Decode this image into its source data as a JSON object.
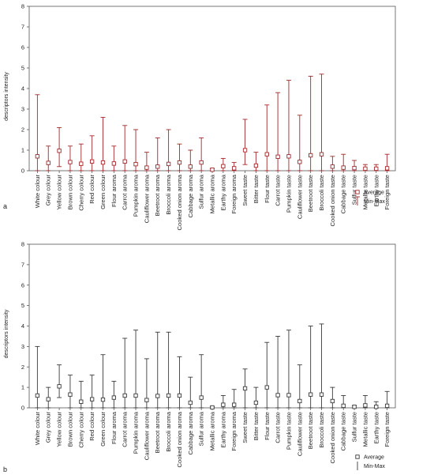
{
  "chart_data": [
    {
      "panel_label": "a",
      "type": "errorbar",
      "ylabel": "descriptors intensity",
      "ylim": [
        0,
        8
      ],
      "yticks": [
        0,
        1,
        2,
        3,
        4,
        5,
        6,
        7,
        8
      ],
      "grid": false,
      "legend": {
        "position": "bottom-right",
        "items": [
          "Average",
          "Min-Max"
        ]
      },
      "color": "#a0282d",
      "categories": [
        "White colour",
        "Grey colour",
        "Yellow colour",
        "Brown colour",
        "Cherry colour",
        "Red colour",
        "Green colour",
        "Flour aroma",
        "Carrot aroma",
        "Pumpkin aroma",
        "Cauliflower aroma",
        "Beetroot aroma",
        "Broccoli aroma",
        "Cooked onion aroma",
        "Cabbage aroma",
        "Sulfur aroma",
        "Metallic aroma",
        "Earthy aroma",
        "Foreign aroma",
        "Sweet taste",
        "Bitter taste",
        "Flour taste",
        "Carrot taste",
        "Pumpkin taste",
        "Cauliflower taste",
        "Beetroot taste",
        "Broccoli taste",
        "Cooked onion taste",
        "Cabbage taste",
        "Sulfur taste",
        "Metallic taste",
        "Earthy taste",
        "Foreign taste"
      ],
      "average": [
        0.7,
        0.38,
        0.97,
        0.42,
        0.34,
        0.45,
        0.4,
        0.35,
        0.45,
        0.32,
        0.15,
        0.2,
        0.33,
        0.4,
        0.2,
        0.4,
        0.05,
        0.22,
        0.12,
        1.0,
        0.25,
        0.8,
        0.68,
        0.7,
        0.43,
        0.75,
        0.8,
        0.2,
        0.15,
        0.13,
        0.1,
        0.1,
        0.12
      ],
      "min": [
        0,
        0,
        0.2,
        0,
        0,
        0,
        0,
        0,
        0,
        0,
        0,
        0,
        0,
        0,
        0,
        0,
        0,
        0,
        0,
        0.3,
        0,
        0,
        0,
        0,
        0,
        0,
        0,
        0,
        0,
        0,
        0,
        0,
        0
      ],
      "max": [
        3.7,
        1.2,
        2.1,
        1.2,
        1.3,
        1.7,
        2.6,
        1.2,
        2.2,
        2.0,
        0.9,
        1.6,
        2.0,
        1.3,
        1.0,
        1.6,
        0.1,
        0.6,
        0.4,
        2.5,
        0.9,
        3.2,
        3.8,
        4.4,
        2.7,
        4.6,
        4.7,
        0.7,
        0.8,
        0.5,
        0.3,
        0.3,
        0.8
      ]
    },
    {
      "panel_label": "b",
      "type": "errorbar",
      "ylabel": "descriptors intensity",
      "ylim": [
        0,
        8
      ],
      "yticks": [
        0,
        1,
        2,
        3,
        4,
        5,
        6,
        7,
        8
      ],
      "grid": false,
      "legend": {
        "position": "bottom-right",
        "items": [
          "Average",
          "Min-Max"
        ]
      },
      "color": "#3a3a3a",
      "categories": [
        "White colour",
        "Grey colour",
        "Yellow colour",
        "Brown colour",
        "Cherry colour",
        "Red colour",
        "Green colour",
        "Flour aroma",
        "Carrot aroma",
        "Pumpkin aroma",
        "Cauliflower aroma",
        "Beetroot aroma",
        "Broccoli aroma",
        "Cooked onion aroma",
        "Cabbage aroma",
        "Sulfur aroma",
        "Metallic aroma",
        "Earthy aroma",
        "Foreign aroma",
        "Sweet taste",
        "Bitter taste",
        "Flour taste",
        "Carrot taste",
        "Pumpkin taste",
        "Cauliflower taste",
        "Beetroot taste",
        "Broccoli taste",
        "Cooked onion taste",
        "Cabbage taste",
        "Sulfur taste",
        "Metallic taste",
        "Earthy taste",
        "Foreign taste"
      ],
      "average": [
        0.6,
        0.42,
        1.05,
        0.65,
        0.3,
        0.42,
        0.4,
        0.5,
        0.6,
        0.6,
        0.38,
        0.58,
        0.6,
        0.6,
        0.25,
        0.5,
        0.02,
        0.15,
        0.15,
        0.95,
        0.25,
        1.0,
        0.62,
        0.62,
        0.33,
        0.65,
        0.65,
        0.33,
        0.1,
        0.05,
        0.12,
        0.05,
        0.1
      ],
      "min": [
        0,
        0,
        0.5,
        0,
        0,
        0,
        0,
        0,
        0,
        0,
        0,
        0,
        0,
        0,
        0,
        0,
        0,
        0,
        0,
        0,
        0,
        0,
        0,
        0,
        0,
        0,
        0,
        0,
        0,
        0,
        0,
        0,
        0
      ],
      "max": [
        3.0,
        1.0,
        2.1,
        1.6,
        1.3,
        1.6,
        2.6,
        1.3,
        3.4,
        3.8,
        2.4,
        3.7,
        3.7,
        2.5,
        1.5,
        2.6,
        0.05,
        0.6,
        0.9,
        1.9,
        1.0,
        3.2,
        3.5,
        3.8,
        2.1,
        4.0,
        4.1,
        1.0,
        0.6,
        0.1,
        0.6,
        0.3,
        0.8
      ]
    }
  ]
}
